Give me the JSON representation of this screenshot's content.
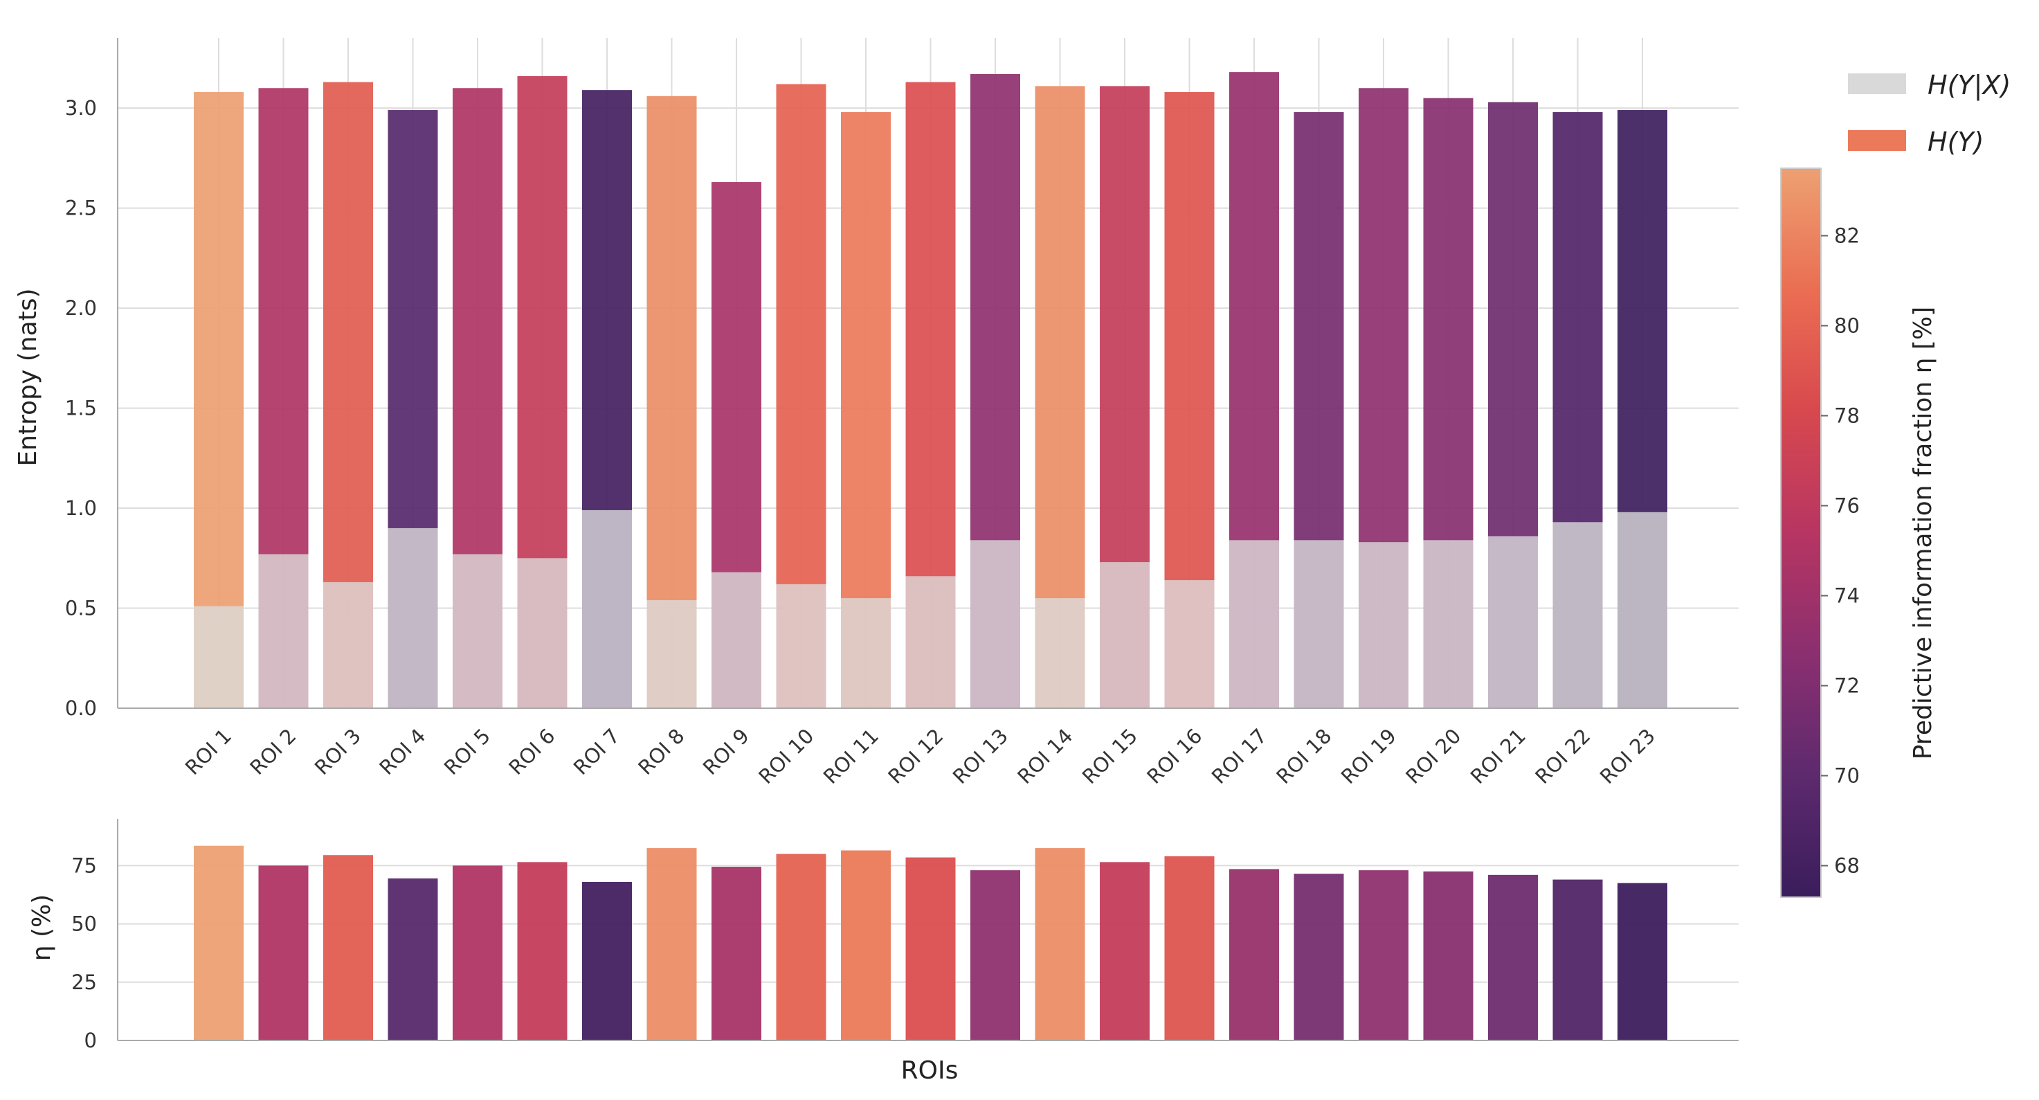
{
  "chart_data": [
    {
      "type": "bar",
      "stacked_overlay": true,
      "categories": [
        "ROI 1",
        "ROI 2",
        "ROI 3",
        "ROI 4",
        "ROI 5",
        "ROI 6",
        "ROI 7",
        "ROI 8",
        "ROI 9",
        "ROI 10",
        "ROI 11",
        "ROI 12",
        "ROI 13",
        "ROI 14",
        "ROI 15",
        "ROI 16",
        "ROI 17",
        "ROI 18",
        "ROI 19",
        "ROI 20",
        "ROI 21",
        "ROI 22",
        "ROI 23"
      ],
      "series": [
        {
          "name": "H(Y)",
          "values": [
            3.08,
            3.1,
            3.13,
            2.99,
            3.1,
            3.16,
            3.09,
            3.06,
            2.63,
            3.12,
            2.98,
            3.13,
            3.17,
            3.11,
            3.11,
            3.08,
            3.18,
            2.98,
            3.1,
            3.05,
            3.03,
            2.98,
            2.99
          ]
        },
        {
          "name": "H(Y|X)",
          "values": [
            0.51,
            0.77,
            0.63,
            0.9,
            0.77,
            0.75,
            0.99,
            0.54,
            0.68,
            0.62,
            0.55,
            0.66,
            0.84,
            0.55,
            0.73,
            0.64,
            0.84,
            0.84,
            0.83,
            0.84,
            0.86,
            0.93,
            0.98
          ]
        }
      ],
      "ylabel": "Entropy (nats)",
      "ylim": [
        0,
        3.35
      ],
      "yticks": [
        "0.0",
        "0.5",
        "1.0",
        "1.5",
        "2.0",
        "2.5",
        "3.0"
      ],
      "grid": true,
      "legend": "top-right-outside"
    },
    {
      "type": "bar",
      "categories": [
        "ROI 1",
        "ROI 2",
        "ROI 3",
        "ROI 4",
        "ROI 5",
        "ROI 6",
        "ROI 7",
        "ROI 8",
        "ROI 9",
        "ROI 10",
        "ROI 11",
        "ROI 12",
        "ROI 13",
        "ROI 14",
        "ROI 15",
        "ROI 16",
        "ROI 17",
        "ROI 18",
        "ROI 19",
        "ROI 20",
        "ROI 21",
        "ROI 22",
        "ROI 23"
      ],
      "values": [
        83.5,
        75.0,
        79.5,
        69.5,
        75.0,
        76.5,
        68.0,
        82.5,
        74.5,
        80.0,
        81.5,
        78.5,
        73.0,
        82.5,
        76.5,
        79.0,
        73.5,
        71.5,
        73.0,
        72.5,
        71.0,
        69.0,
        67.5
      ],
      "ylabel": "η (%)",
      "xlabel": "ROIs",
      "ylim": [
        0,
        95
      ],
      "yticks": [
        "0",
        "25",
        "50",
        "75"
      ],
      "grid": true
    }
  ],
  "colorbar": {
    "label": "Predictive information fraction η [%]",
    "range": [
      67.3,
      83.5
    ],
    "ticks": [
      "68",
      "70",
      "72",
      "74",
      "76",
      "78",
      "80",
      "82"
    ],
    "colors_low_to_high": [
      "#3a1d5c",
      "#5e2a6e",
      "#8a2f70",
      "#b73562",
      "#d8494e",
      "#ea6d52",
      "#eda072"
    ]
  },
  "legend": [
    {
      "label": "H(Y|X)",
      "color": "#d9d9d9"
    },
    {
      "label": "H(Y)",
      "color": "#ea7a5a"
    }
  ],
  "colors": {
    "conditional_fill": "#dcdcdc",
    "grid": "#dddddd",
    "axis": "#aaaaaa"
  }
}
